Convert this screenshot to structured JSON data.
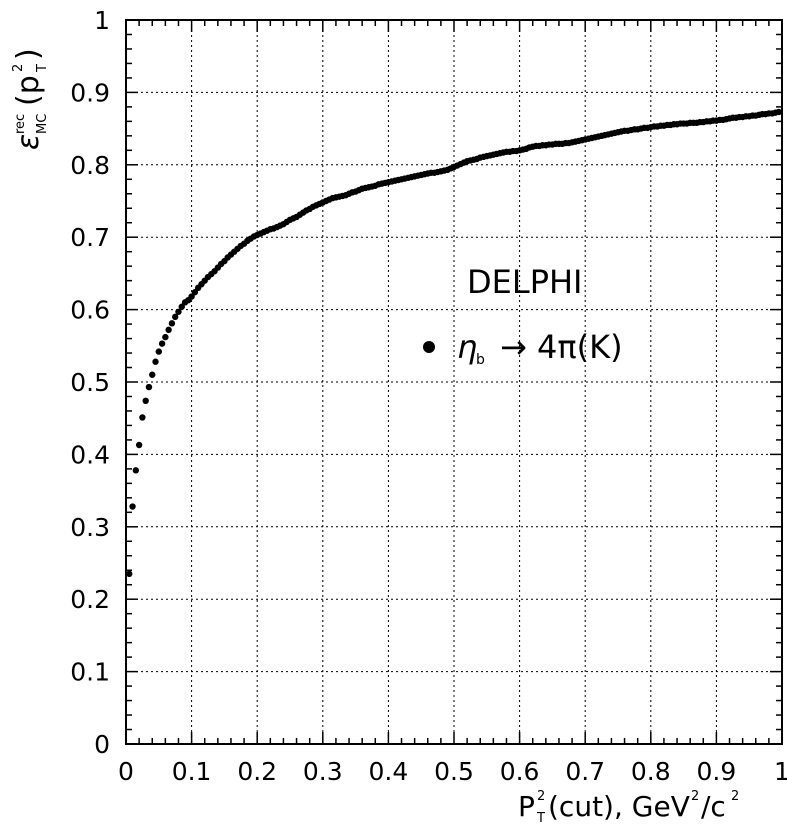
{
  "chart_data": {
    "type": "scatter",
    "title": "",
    "xlabel": "P_T^2(cut), GeV^2/c^2",
    "ylabel": "ε_MC^rec(p_T^2)",
    "xlim": [
      0,
      1
    ],
    "ylim": [
      0,
      1
    ],
    "grid": true,
    "x_ticks": [
      "0",
      "0.1",
      "0.2",
      "0.3",
      "0.4",
      "0.5",
      "0.6",
      "0.7",
      "0.8",
      "0.9",
      "1"
    ],
    "y_ticks": [
      "0",
      "0.1",
      "0.2",
      "0.3",
      "0.4",
      "0.5",
      "0.6",
      "0.7",
      "0.8",
      "0.9",
      "1"
    ],
    "annotations": {
      "experiment": "DELPHI",
      "legend_label": "η_b → 4π(K)"
    },
    "series": [
      {
        "marker_color": "#000000",
        "points": [
          [
            0.005,
            0.235
          ],
          [
            0.01,
            0.328
          ],
          [
            0.015,
            0.378
          ],
          [
            0.02,
            0.413
          ],
          [
            0.025,
            0.451
          ],
          [
            0.03,
            0.474
          ],
          [
            0.035,
            0.493
          ],
          [
            0.04,
            0.51
          ],
          [
            0.045,
            0.528
          ],
          [
            0.05,
            0.542
          ],
          [
            0.055,
            0.553
          ],
          [
            0.06,
            0.562
          ],
          [
            0.065,
            0.572
          ],
          [
            0.07,
            0.581
          ],
          [
            0.075,
            0.59
          ],
          [
            0.08,
            0.597
          ],
          [
            0.085,
            0.604
          ],
          [
            0.09,
            0.61
          ],
          [
            0.095,
            0.613
          ],
          [
            0.1,
            0.618
          ],
          [
            0.105,
            0.624
          ],
          [
            0.11,
            0.63
          ],
          [
            0.115,
            0.635
          ],
          [
            0.12,
            0.64
          ],
          [
            0.125,
            0.645
          ],
          [
            0.13,
            0.649
          ],
          [
            0.135,
            0.653
          ],
          [
            0.14,
            0.658
          ],
          [
            0.145,
            0.663
          ],
          [
            0.15,
            0.667
          ],
          [
            0.155,
            0.672
          ],
          [
            0.16,
            0.676
          ],
          [
            0.165,
            0.68
          ],
          [
            0.17,
            0.684
          ],
          [
            0.175,
            0.688
          ],
          [
            0.18,
            0.691
          ],
          [
            0.185,
            0.695
          ],
          [
            0.19,
            0.698
          ],
          [
            0.195,
            0.701
          ],
          [
            0.2,
            0.703
          ],
          [
            0.205,
            0.705
          ],
          [
            0.21,
            0.707
          ],
          [
            0.215,
            0.709
          ],
          [
            0.22,
            0.711
          ],
          [
            0.225,
            0.712
          ],
          [
            0.23,
            0.714
          ],
          [
            0.235,
            0.716
          ],
          [
            0.24,
            0.718
          ],
          [
            0.245,
            0.721
          ],
          [
            0.25,
            0.724
          ],
          [
            0.255,
            0.726
          ],
          [
            0.26,
            0.728
          ],
          [
            0.265,
            0.731
          ],
          [
            0.27,
            0.734
          ],
          [
            0.275,
            0.737
          ],
          [
            0.28,
            0.739
          ],
          [
            0.285,
            0.742
          ],
          [
            0.29,
            0.744
          ],
          [
            0.295,
            0.746
          ],
          [
            0.3,
            0.748
          ],
          [
            0.305,
            0.75
          ],
          [
            0.31,
            0.752
          ],
          [
            0.315,
            0.754
          ],
          [
            0.32,
            0.755
          ],
          [
            0.325,
            0.756
          ],
          [
            0.33,
            0.757
          ],
          [
            0.335,
            0.758
          ],
          [
            0.34,
            0.76
          ],
          [
            0.345,
            0.762
          ],
          [
            0.35,
            0.763
          ],
          [
            0.355,
            0.765
          ],
          [
            0.36,
            0.767
          ],
          [
            0.365,
            0.768
          ],
          [
            0.37,
            0.769
          ],
          [
            0.375,
            0.77
          ],
          [
            0.38,
            0.771
          ],
          [
            0.385,
            0.773
          ],
          [
            0.39,
            0.774
          ],
          [
            0.395,
            0.775
          ],
          [
            0.4,
            0.776
          ],
          [
            0.405,
            0.777
          ],
          [
            0.41,
            0.778
          ],
          [
            0.415,
            0.779
          ],
          [
            0.42,
            0.78
          ],
          [
            0.425,
            0.781
          ],
          [
            0.43,
            0.782
          ],
          [
            0.435,
            0.783
          ],
          [
            0.44,
            0.784
          ],
          [
            0.445,
            0.785
          ],
          [
            0.45,
            0.786
          ],
          [
            0.455,
            0.787
          ],
          [
            0.46,
            0.788
          ],
          [
            0.465,
            0.789
          ],
          [
            0.47,
            0.789
          ],
          [
            0.475,
            0.79
          ],
          [
            0.48,
            0.791
          ],
          [
            0.485,
            0.792
          ],
          [
            0.49,
            0.793
          ],
          [
            0.495,
            0.795
          ],
          [
            0.5,
            0.797
          ],
          [
            0.505,
            0.799
          ],
          [
            0.51,
            0.801
          ],
          [
            0.515,
            0.803
          ],
          [
            0.52,
            0.805
          ],
          [
            0.525,
            0.806
          ],
          [
            0.53,
            0.807
          ],
          [
            0.535,
            0.808
          ],
          [
            0.54,
            0.81
          ],
          [
            0.545,
            0.811
          ],
          [
            0.55,
            0.812
          ],
          [
            0.555,
            0.813
          ],
          [
            0.56,
            0.814
          ],
          [
            0.565,
            0.815
          ],
          [
            0.57,
            0.816
          ],
          [
            0.575,
            0.817
          ],
          [
            0.58,
            0.818
          ],
          [
            0.585,
            0.818
          ],
          [
            0.59,
            0.819
          ],
          [
            0.595,
            0.819
          ],
          [
            0.6,
            0.82
          ],
          [
            0.605,
            0.821
          ],
          [
            0.61,
            0.822
          ],
          [
            0.615,
            0.824
          ],
          [
            0.62,
            0.825
          ],
          [
            0.625,
            0.826
          ],
          [
            0.63,
            0.826
          ],
          [
            0.635,
            0.827
          ],
          [
            0.64,
            0.827
          ],
          [
            0.645,
            0.828
          ],
          [
            0.65,
            0.828
          ],
          [
            0.655,
            0.829
          ],
          [
            0.66,
            0.829
          ],
          [
            0.665,
            0.829
          ],
          [
            0.67,
            0.83
          ],
          [
            0.675,
            0.83
          ],
          [
            0.68,
            0.831
          ],
          [
            0.685,
            0.832
          ],
          [
            0.69,
            0.833
          ],
          [
            0.695,
            0.834
          ],
          [
            0.7,
            0.835
          ],
          [
            0.705,
            0.836
          ],
          [
            0.71,
            0.837
          ],
          [
            0.715,
            0.838
          ],
          [
            0.72,
            0.839
          ],
          [
            0.725,
            0.84
          ],
          [
            0.73,
            0.841
          ],
          [
            0.735,
            0.842
          ],
          [
            0.74,
            0.843
          ],
          [
            0.745,
            0.844
          ],
          [
            0.75,
            0.845
          ],
          [
            0.755,
            0.846
          ],
          [
            0.76,
            0.847
          ],
          [
            0.765,
            0.847
          ],
          [
            0.77,
            0.848
          ],
          [
            0.775,
            0.849
          ],
          [
            0.78,
            0.849
          ],
          [
            0.785,
            0.85
          ],
          [
            0.79,
            0.851
          ],
          [
            0.795,
            0.851
          ],
          [
            0.8,
            0.852
          ],
          [
            0.805,
            0.853
          ],
          [
            0.81,
            0.853
          ],
          [
            0.815,
            0.854
          ],
          [
            0.82,
            0.854
          ],
          [
            0.825,
            0.855
          ],
          [
            0.83,
            0.855
          ],
          [
            0.835,
            0.856
          ],
          [
            0.84,
            0.856
          ],
          [
            0.845,
            0.857
          ],
          [
            0.85,
            0.857
          ],
          [
            0.855,
            0.857
          ],
          [
            0.86,
            0.858
          ],
          [
            0.865,
            0.858
          ],
          [
            0.87,
            0.858
          ],
          [
            0.875,
            0.859
          ],
          [
            0.88,
            0.859
          ],
          [
            0.885,
            0.86
          ],
          [
            0.89,
            0.86
          ],
          [
            0.895,
            0.861
          ],
          [
            0.9,
            0.861
          ],
          [
            0.905,
            0.862
          ],
          [
            0.91,
            0.862
          ],
          [
            0.915,
            0.863
          ],
          [
            0.92,
            0.864
          ],
          [
            0.925,
            0.865
          ],
          [
            0.93,
            0.865
          ],
          [
            0.935,
            0.866
          ],
          [
            0.94,
            0.866
          ],
          [
            0.945,
            0.867
          ],
          [
            0.95,
            0.867
          ],
          [
            0.955,
            0.868
          ],
          [
            0.96,
            0.868
          ],
          [
            0.965,
            0.869
          ],
          [
            0.97,
            0.87
          ],
          [
            0.975,
            0.87
          ],
          [
            0.98,
            0.871
          ],
          [
            0.985,
            0.871
          ],
          [
            0.99,
            0.872
          ],
          [
            0.995,
            0.873
          ]
        ]
      }
    ]
  }
}
